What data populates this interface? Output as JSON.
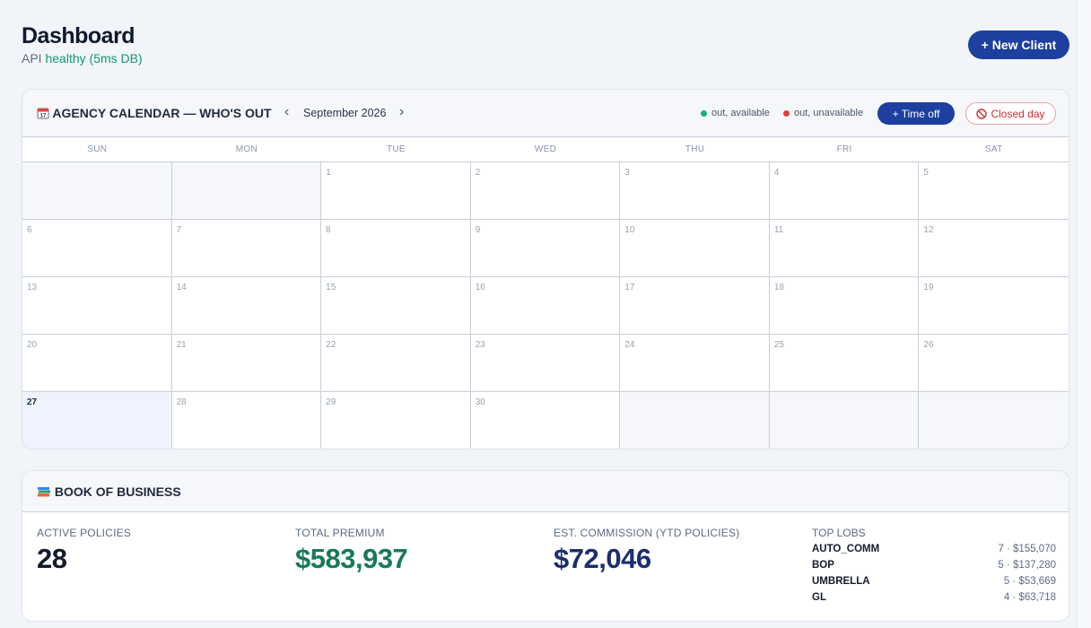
{
  "header": {
    "title": "Dashboard",
    "api_prefix": "API",
    "api_status": "healthy (5ms DB)",
    "new_client_label": "+ New Client"
  },
  "calendar": {
    "icon": "calendar-icon",
    "title": "AGENCY CALENDAR — WHO'S OUT",
    "prev_label": "‹",
    "next_label": "›",
    "month": "September 2026",
    "legend": {
      "available": "out, available",
      "unavailable": "out, unavailable",
      "available_color": "#14b07a",
      "unavailable_color": "#e63b3b"
    },
    "timeoff_label": "+ Time off",
    "closed_label": "Closed day",
    "weekdays": [
      "SUN",
      "MON",
      "TUE",
      "WED",
      "THU",
      "FRI",
      "SAT"
    ],
    "cells": [
      "",
      "",
      "1",
      "2",
      "3",
      "4",
      "5",
      "6",
      "7",
      "8",
      "9",
      "10",
      "11",
      "12",
      "13",
      "14",
      "15",
      "16",
      "17",
      "18",
      "19",
      "20",
      "21",
      "22",
      "23",
      "24",
      "25",
      "26",
      "27",
      "28",
      "29",
      "30",
      "",
      "",
      ""
    ],
    "today": "27"
  },
  "book": {
    "icon": "books-icon",
    "title": "BOOK OF BUSINESS",
    "active_label": "ACTIVE POLICIES",
    "active_value": "28",
    "premium_label": "TOTAL PREMIUM",
    "premium_value": "$583,937",
    "commission_label": "EST. COMMISSION (YTD POLICIES)",
    "commission_value": "$72,046",
    "lobs_label": "TOP LOBS",
    "lobs": [
      {
        "name": "AUTO_COMM",
        "value": "7 · $155,070"
      },
      {
        "name": "BOP",
        "value": "5 · $137,280"
      },
      {
        "name": "UMBRELLA",
        "value": "5 · $53,669"
      },
      {
        "name": "GL",
        "value": "4 · $63,718"
      }
    ]
  }
}
